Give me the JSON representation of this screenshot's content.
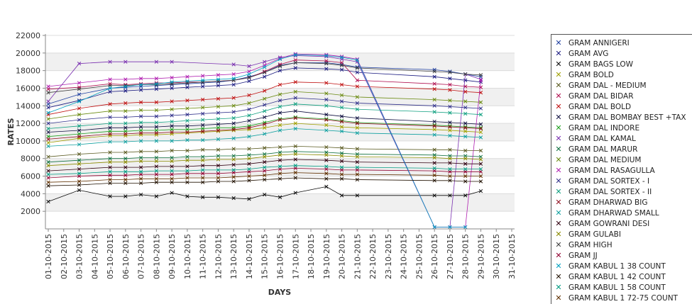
{
  "chart_data": {
    "type": "line",
    "xlabel": "DAYS",
    "ylabel": "RATES",
    "ylim": [
      0,
      22000
    ],
    "yticks": [
      2000,
      4000,
      6000,
      8000,
      10000,
      12000,
      14000,
      16000,
      18000,
      20000,
      22000
    ],
    "categories": [
      "01-10-2015",
      "02-10-2015",
      "03-10-2015",
      "04-10-2015",
      "05-10-2015",
      "06-10-2015",
      "07-10-2015",
      "08-10-2015",
      "09-10-2015",
      "10-10-2015",
      "11-10-2015",
      "12-10-2015",
      "13-10-2015",
      "14-10-2015",
      "15-10-2015",
      "16-10-2015",
      "17-10-2015",
      "18-10-2015",
      "19-10-2015",
      "20-10-2015",
      "21-10-2015",
      "22-10-2015",
      "23-10-2015",
      "24-10-2015",
      "25-10-2015",
      "26-10-2015",
      "27-10-2015",
      "28-10-2015",
      "29-10-2015",
      "30-10-2015",
      "31-10-2015"
    ],
    "grid": true,
    "legend_position": "right",
    "series": [
      {
        "name": "GRAM ANNIGERI",
        "color": "#1f3fa0",
        "values": [
          14200,
          null,
          15300,
          null,
          16000,
          16100,
          16200,
          16300,
          16400,
          16500,
          16600,
          16700,
          16900,
          17300,
          17800,
          18600,
          18900,
          null,
          18900,
          18700,
          18400,
          null,
          null,
          null,
          null,
          18100,
          17900,
          17600,
          17300,
          null,
          null
        ]
      },
      {
        "name": "GRAM AVG",
        "color": "#1a1a80",
        "values": [
          13800,
          null,
          14600,
          null,
          15600,
          15700,
          15800,
          15900,
          16000,
          16100,
          16200,
          16300,
          16400,
          16800,
          17300,
          18000,
          18300,
          null,
          18200,
          18100,
          17800,
          null,
          null,
          null,
          null,
          17300,
          17100,
          16900,
          16700,
          null,
          null
        ]
      },
      {
        "name": "GRAM BAGS LOW",
        "color": "#0a0a0a",
        "values": [
          3100,
          null,
          4400,
          null,
          3700,
          3700,
          3900,
          3700,
          4100,
          3700,
          3600,
          3600,
          3500,
          3400,
          3900,
          3600,
          4100,
          null,
          4800,
          3800,
          3800,
          null,
          null,
          null,
          null,
          3800,
          3800,
          3800,
          4300,
          null,
          null
        ]
      },
      {
        "name": "GRAM BOLD",
        "color": "#a0a000",
        "values": [
          9800,
          null,
          10300,
          null,
          10600,
          10600,
          10700,
          10700,
          10800,
          10900,
          11000,
          11100,
          11200,
          11300,
          11500,
          11800,
          12000,
          null,
          11800,
          11600,
          11500,
          null,
          null,
          null,
          null,
          11300,
          11200,
          11100,
          11000,
          null,
          null
        ]
      },
      {
        "name": "GRAM DAL - MEDIUM",
        "color": "#5a5a20",
        "values": [
          8200,
          null,
          8500,
          null,
          8700,
          8700,
          8800,
          8800,
          8900,
          8900,
          9000,
          9000,
          9100,
          9100,
          9200,
          9300,
          9400,
          null,
          9300,
          9200,
          9100,
          null,
          null,
          null,
          null,
          9000,
          9000,
          8900,
          8900,
          null,
          null
        ]
      },
      {
        "name": "GRAM DAL BIDAR",
        "color": "#b01050",
        "values": [
          15900,
          null,
          16100,
          null,
          16500,
          16400,
          16500,
          16600,
          16600,
          16700,
          16700,
          16800,
          16900,
          17200,
          17900,
          18700,
          19200,
          null,
          19100,
          18900,
          16900,
          null,
          null,
          null,
          null,
          16500,
          16400,
          16200,
          16100,
          null,
          null
        ]
      },
      {
        "name": "GRAM DAL BOLD",
        "color": "#c01010",
        "values": [
          13000,
          null,
          13700,
          null,
          14200,
          14300,
          14400,
          14400,
          14500,
          14600,
          14700,
          14800,
          14900,
          15200,
          15700,
          16400,
          16700,
          null,
          16600,
          16400,
          16200,
          null,
          null,
          null,
          null,
          15900,
          15800,
          15600,
          15500,
          null,
          null
        ]
      },
      {
        "name": "GRAM DAL BOMBAY BEST +TAX",
        "color": "#101040",
        "values": [
          11000,
          null,
          11200,
          null,
          11500,
          11500,
          11600,
          11600,
          11700,
          11700,
          11800,
          11900,
          12000,
          12300,
          12700,
          13200,
          13400,
          null,
          13000,
          12800,
          12600,
          null,
          null,
          null,
          null,
          12200,
          12100,
          12000,
          11900,
          null,
          null
        ]
      },
      {
        "name": "GRAM DAL INDORE",
        "color": "#20a020",
        "values": [
          10500,
          null,
          10800,
          null,
          11100,
          11100,
          11200,
          11200,
          11300,
          11300,
          11400,
          11500,
          11500,
          11700,
          12100,
          12500,
          12700,
          null,
          12500,
          12300,
          12100,
          null,
          null,
          null,
          null,
          11800,
          11700,
          11600,
          11500,
          null,
          null
        ]
      },
      {
        "name": "GRAM DAL KAMAL",
        "color": "#7a30b0",
        "values": [
          14500,
          null,
          18800,
          null,
          19000,
          19000,
          null,
          19000,
          19000,
          null,
          null,
          null,
          18700,
          18500,
          19000,
          19500,
          19700,
          null,
          19600,
          19300,
          19000,
          null,
          null,
          null,
          null,
          200,
          200,
          17600,
          17000,
          null,
          null
        ]
      },
      {
        "name": "GRAM DAL MARUR",
        "color": "#107040",
        "values": [
          7600,
          null,
          7800,
          null,
          8000,
          8000,
          8100,
          8100,
          8100,
          8200,
          8200,
          8300,
          8300,
          8400,
          8500,
          8700,
          8800,
          null,
          8700,
          8600,
          8500,
          null,
          null,
          null,
          null,
          8400,
          8300,
          8300,
          8200,
          null,
          null
        ]
      },
      {
        "name": "GRAM DAL MEDIUM",
        "color": "#6a8a10",
        "values": [
          12500,
          null,
          13000,
          null,
          13400,
          13400,
          13500,
          13500,
          13600,
          13700,
          13800,
          13900,
          14000,
          14300,
          14800,
          15300,
          15600,
          null,
          15400,
          15200,
          15000,
          null,
          null,
          null,
          null,
          14700,
          14600,
          14500,
          14400,
          null,
          null
        ]
      },
      {
        "name": "GRAM DAL RASAGULLA",
        "color": "#b020b0",
        "values": [
          16200,
          null,
          16600,
          null,
          17000,
          17000,
          17100,
          17100,
          17200,
          17300,
          17400,
          17500,
          17600,
          17900,
          18600,
          19400,
          19900,
          null,
          19800,
          19600,
          19300,
          null,
          null,
          null,
          null,
          200,
          200,
          200,
          16900,
          null,
          null
        ]
      },
      {
        "name": "GRAM DAL SORTEX  - I",
        "color": "#30308a",
        "values": [
          12000,
          null,
          12400,
          null,
          12700,
          12700,
          12800,
          12800,
          12900,
          13000,
          13100,
          13200,
          13300,
          13600,
          14100,
          14600,
          14900,
          null,
          14700,
          14500,
          14300,
          null,
          null,
          null,
          null,
          14000,
          13900,
          13800,
          13700,
          null,
          null
        ]
      },
      {
        "name": "GRAM DAL SORTEX - II",
        "color": "#10a080",
        "values": [
          11400,
          null,
          11700,
          null,
          12000,
          12000,
          12100,
          12100,
          12200,
          12300,
          12400,
          12500,
          12600,
          12900,
          13400,
          13900,
          14200,
          null,
          14000,
          13800,
          13600,
          null,
          null,
          null,
          null,
          13300,
          13200,
          13100,
          13000,
          null,
          null
        ]
      },
      {
        "name": "GRAM DHARWAD BIG",
        "color": "#901020",
        "values": [
          10200,
          null,
          10500,
          null,
          10800,
          10800,
          10900,
          10900,
          11000,
          11000,
          11100,
          11200,
          11300,
          11500,
          11900,
          12400,
          12600,
          null,
          12400,
          12200,
          12000,
          null,
          null,
          null,
          null,
          11700,
          11600,
          11500,
          11400,
          null,
          null
        ]
      },
      {
        "name": "GRAM DHARWAD SMALL",
        "color": "#10a0a0",
        "values": [
          9400,
          null,
          9600,
          null,
          9900,
          9900,
          10000,
          10000,
          10000,
          10100,
          10100,
          10200,
          10300,
          10500,
          10800,
          11200,
          11400,
          null,
          11200,
          11100,
          10900,
          null,
          null,
          null,
          null,
          10700,
          10600,
          10500,
          10400,
          null,
          null
        ]
      },
      {
        "name": "GRAM GOWRANI DESI",
        "color": "#300010",
        "values": [
          6600,
          null,
          6800,
          null,
          7000,
          7000,
          7000,
          7100,
          7100,
          7100,
          7200,
          7200,
          7300,
          7400,
          7600,
          7800,
          7900,
          null,
          7800,
          7700,
          7600,
          null,
          null,
          null,
          null,
          7500,
          7500,
          7400,
          7400,
          null,
          null
        ]
      },
      {
        "name": "GRAM GULABI",
        "color": "#8a8a00",
        "values": [
          7200,
          null,
          7400,
          null,
          7600,
          7600,
          7700,
          7700,
          7700,
          7800,
          7800,
          7900,
          7900,
          8000,
          8200,
          8400,
          8500,
          null,
          8400,
          8300,
          8200,
          null,
          null,
          null,
          null,
          8100,
          8000,
          8000,
          7900,
          null,
          null
        ]
      },
      {
        "name": "GRAM HIGH",
        "color": "#404040",
        "values": [
          15500,
          null,
          15900,
          null,
          16300,
          16300,
          16400,
          16400,
          16500,
          16600,
          16700,
          16800,
          16900,
          17200,
          17800,
          18500,
          18900,
          null,
          18800,
          18600,
          18300,
          null,
          null,
          null,
          null,
          17900,
          17800,
          17600,
          17500,
          null,
          null
        ]
      },
      {
        "name": "GRAM JJ",
        "color": "#900030",
        "values": [
          5800,
          null,
          6000,
          null,
          6100,
          6100,
          6200,
          6200,
          6200,
          6300,
          6300,
          6300,
          6400,
          6500,
          6600,
          6800,
          6900,
          null,
          6800,
          6700,
          6700,
          null,
          null,
          null,
          null,
          6600,
          6500,
          6500,
          6500,
          null,
          null
        ]
      },
      {
        "name": "GRAM KABUL 1 38 COUNT",
        "color": "#00a0c0",
        "values": [
          13200,
          null,
          14500,
          null,
          16000,
          16200,
          16400,
          16500,
          16700,
          16800,
          16900,
          17000,
          17100,
          17600,
          18400,
          19300,
          19800,
          null,
          19700,
          19500,
          19200,
          null,
          null,
          null,
          null,
          200,
          200,
          200,
          null,
          null,
          null
        ]
      },
      {
        "name": "GRAM KABUL 1 42 COUNT",
        "color": "#201000",
        "values": [
          4900,
          null,
          5000,
          null,
          5200,
          5200,
          5200,
          5300,
          5300,
          5300,
          5300,
          5400,
          5400,
          5500,
          5600,
          5700,
          5800,
          null,
          5700,
          5700,
          5600,
          null,
          null,
          null,
          null,
          5500,
          5500,
          5400,
          5400,
          null,
          null
        ]
      },
      {
        "name": "GRAM KABUL 1 58 COUNT",
        "color": "#009a80",
        "values": [
          6200,
          null,
          6300,
          null,
          6500,
          6500,
          6500,
          6600,
          6600,
          6600,
          6700,
          6700,
          6700,
          6800,
          7000,
          7100,
          7200,
          null,
          7100,
          7000,
          7000,
          null,
          null,
          null,
          null,
          6900,
          6800,
          6800,
          6800,
          null,
          null
        ]
      },
      {
        "name": "GRAM KABUL 1 72-75 COUNT",
        "color": "#603000",
        "values": [
          5300,
          null,
          5400,
          null,
          5600,
          5600,
          5700,
          5700,
          5700,
          5800,
          5800,
          5800,
          5900,
          6000,
          6100,
          6300,
          6400,
          null,
          6300,
          6200,
          6200,
          null,
          null,
          null,
          null,
          6100,
          6000,
          6000,
          6000,
          null,
          null
        ]
      }
    ]
  }
}
